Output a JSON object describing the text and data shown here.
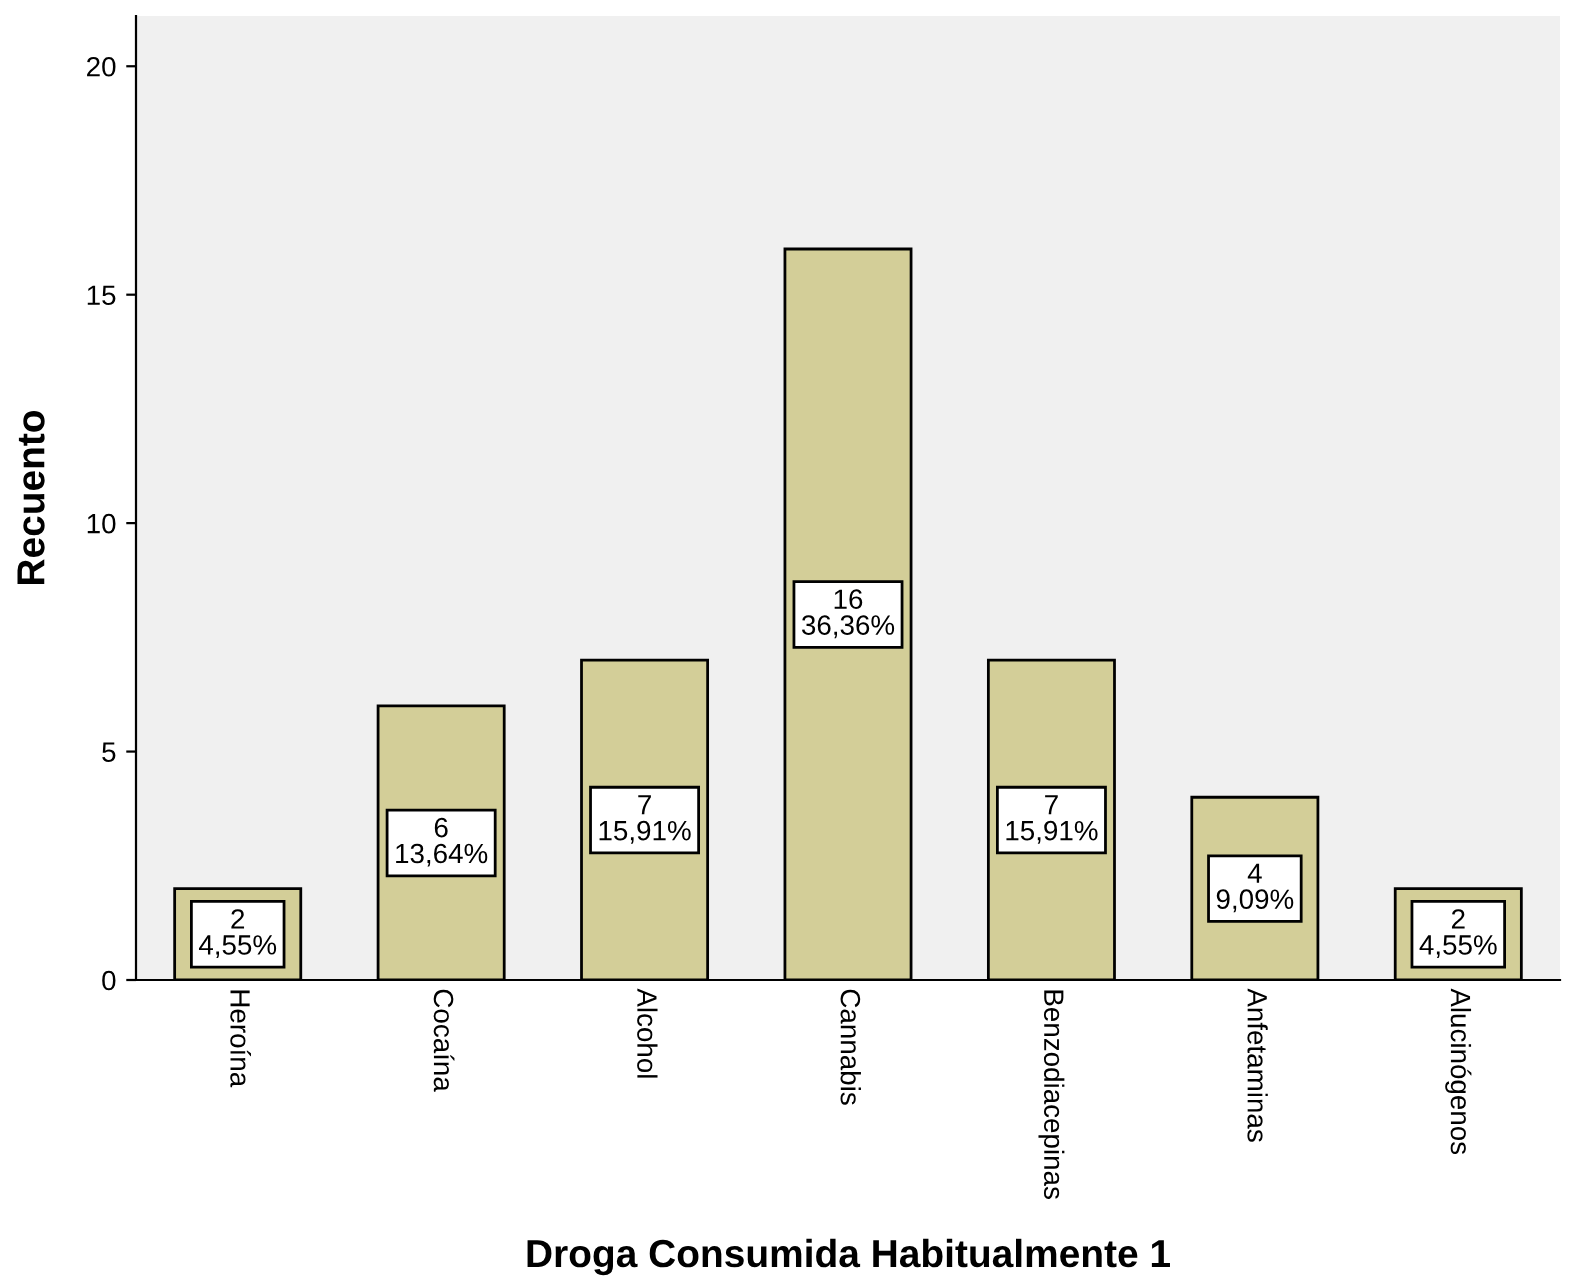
{
  "chart_data": {
    "type": "bar",
    "xlabel": "Droga Consumida Habitualmente 1",
    "ylabel": "Recuento",
    "categories": [
      "Heroína",
      "Cocaína",
      "Alcohol",
      "Cannabis",
      "Benzodiacepinas",
      "Anfetaminas",
      "Alucinógenos"
    ],
    "values": [
      2,
      6,
      7,
      16,
      7,
      4,
      2
    ],
    "value_labels": [
      "2\n4,55%",
      "6\n13,64%",
      "7\n15,91%",
      "16\n36,36%",
      "7\n15,91%",
      "4\n9,09%",
      "2\n4,55%"
    ],
    "color": "#d3ce98",
    "ylim": [
      0,
      21.1
    ],
    "yticks": [
      0,
      5,
      10,
      15,
      20
    ],
    "grid": false,
    "legend": false
  }
}
